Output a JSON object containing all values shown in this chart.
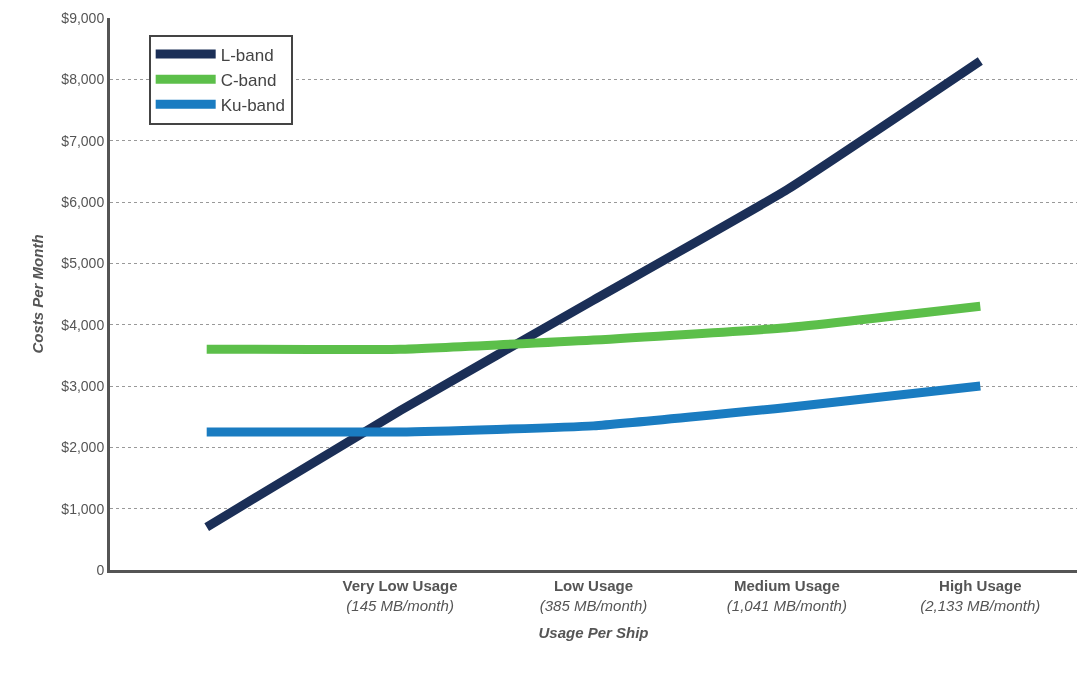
{
  "chart_data": {
    "type": "line",
    "xlabel": "Usage Per Ship",
    "ylabel": "Costs Per Month",
    "categories": [
      null,
      "Very Low Usage\n(145 MB/month)",
      "Low Usage\n(385 MB/month)",
      "Medium Usage\n(1,041 MB/month)",
      "High Usage\n(2,133 MB/month)"
    ],
    "series": [
      {
        "name": "L-band",
        "color": "#1b2f57",
        "values": [
          700,
          2600,
          4400,
          6200,
          8300
        ]
      },
      {
        "name": "C-band",
        "color": "#5cbf4a",
        "values": [
          3600,
          3600,
          3750,
          3950,
          4300
        ]
      },
      {
        "name": "Ku-band",
        "color": "#1a7cc1",
        "values": [
          2250,
          2250,
          2350,
          2650,
          3000
        ]
      }
    ],
    "ylim": [
      0,
      9000
    ],
    "yticks": [
      {
        "value": 0,
        "label": "0"
      },
      {
        "value": 1000,
        "label": "$1,000"
      },
      {
        "value": 2000,
        "label": "$2,000"
      },
      {
        "value": 3000,
        "label": "$3,000"
      },
      {
        "value": 4000,
        "label": "$4,000"
      },
      {
        "value": 5000,
        "label": "$5,000"
      },
      {
        "value": 6000,
        "label": "$6,000"
      },
      {
        "value": 7000,
        "label": "$7,000"
      },
      {
        "value": 8000,
        "label": "$8,000"
      },
      {
        "value": 9000,
        "label": "$9,000"
      }
    ],
    "grid": "y",
    "legend": "top left",
    "marker": "none",
    "line_style": "solid"
  }
}
